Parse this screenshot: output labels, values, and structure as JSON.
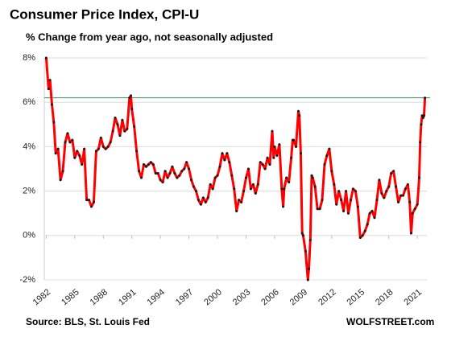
{
  "chart_data": {
    "type": "line",
    "title": "Consumer  Price Index, CPI-U",
    "subtitle": "% Change from year ago, not seasonally adjusted",
    "source": "Source: BLS, St. Louis Fed",
    "brand": "WOLFSTREET.com",
    "x": [
      1982.0,
      1982.25,
      1982.4,
      1982.6,
      1982.8,
      1983.0,
      1983.25,
      1983.5,
      1983.75,
      1984.0,
      1984.25,
      1984.5,
      1984.75,
      1985.0,
      1985.25,
      1985.5,
      1985.75,
      1986.0,
      1986.25,
      1986.5,
      1986.75,
      1987.0,
      1987.25,
      1987.5,
      1987.75,
      1988.0,
      1988.25,
      1988.5,
      1988.75,
      1989.0,
      1989.25,
      1989.5,
      1989.75,
      1990.0,
      1990.25,
      1990.5,
      1990.75,
      1990.9,
      1991.0,
      1991.25,
      1991.5,
      1991.75,
      1992.0,
      1992.25,
      1992.5,
      1992.75,
      1993.0,
      1993.25,
      1993.5,
      1993.75,
      1994.0,
      1994.25,
      1994.5,
      1994.75,
      1995.0,
      1995.25,
      1995.5,
      1995.75,
      1996.0,
      1996.25,
      1996.5,
      1996.75,
      1997.0,
      1997.25,
      1997.5,
      1997.75,
      1998.0,
      1998.25,
      1998.5,
      1998.75,
      1999.0,
      1999.25,
      1999.5,
      1999.75,
      2000.0,
      2000.25,
      2000.5,
      2000.75,
      2001.0,
      2001.25,
      2001.5,
      2001.75,
      2002.0,
      2002.25,
      2002.5,
      2002.75,
      2003.0,
      2003.25,
      2003.5,
      2003.75,
      2004.0,
      2004.25,
      2004.5,
      2004.75,
      2005.0,
      2005.25,
      2005.5,
      2005.75,
      2005.9,
      2006.0,
      2006.25,
      2006.5,
      2006.75,
      2006.9,
      2007.0,
      2007.25,
      2007.5,
      2007.75,
      2007.9,
      2008.0,
      2008.25,
      2008.5,
      2008.6,
      2008.75,
      2008.9,
      2009.0,
      2009.25,
      2009.5,
      2009.6,
      2009.75,
      2009.9,
      2010.0,
      2010.25,
      2010.5,
      2010.75,
      2011.0,
      2011.25,
      2011.5,
      2011.75,
      2012.0,
      2012.25,
      2012.5,
      2012.75,
      2013.0,
      2013.25,
      2013.5,
      2013.75,
      2014.0,
      2014.25,
      2014.5,
      2014.75,
      2015.0,
      2015.25,
      2015.5,
      2015.75,
      2016.0,
      2016.25,
      2016.5,
      2016.75,
      2017.0,
      2017.25,
      2017.5,
      2017.75,
      2018.0,
      2018.25,
      2018.5,
      2018.75,
      2019.0,
      2019.25,
      2019.5,
      2019.75,
      2020.0,
      2020.2,
      2020.35,
      2020.5,
      2020.75,
      2021.0,
      2021.2,
      2021.3,
      2021.4,
      2021.5,
      2021.6,
      2021.7,
      2021.8
    ],
    "values": [
      8.0,
      6.6,
      7.0,
      5.9,
      5.1,
      3.7,
      3.9,
      2.5,
      2.9,
      4.2,
      4.6,
      4.2,
      4.3,
      3.5,
      3.8,
      3.6,
      3.2,
      3.9,
      1.6,
      1.6,
      1.3,
      1.5,
      3.8,
      3.9,
      4.4,
      4.0,
      3.9,
      4.0,
      4.2,
      4.7,
      5.3,
      5.0,
      4.5,
      5.2,
      4.7,
      4.8,
      6.2,
      6.3,
      5.7,
      4.9,
      3.8,
      2.9,
      2.6,
      3.2,
      3.1,
      3.2,
      3.3,
      3.2,
      2.8,
      2.8,
      2.5,
      2.4,
      2.9,
      2.6,
      2.8,
      3.1,
      2.8,
      2.6,
      2.7,
      2.9,
      3.0,
      3.3,
      3.0,
      2.5,
      2.2,
      2.0,
      1.6,
      1.4,
      1.7,
      1.5,
      1.7,
      2.3,
      2.1,
      2.6,
      2.7,
      3.1,
      3.7,
      3.4,
      3.7,
      3.3,
      2.7,
      2.1,
      1.1,
      1.6,
      1.5,
      2.0,
      2.6,
      3.0,
      2.1,
      2.3,
      1.9,
      2.3,
      3.3,
      3.2,
      3.0,
      3.5,
      3.2,
      4.7,
      3.5,
      4.0,
      3.6,
      4.1,
      2.1,
      1.3,
      2.1,
      2.6,
      2.4,
      3.5,
      4.3,
      4.3,
      4.0,
      5.6,
      5.4,
      3.7,
      0.1,
      0.0,
      -0.7,
      -2.0,
      -1.5,
      -0.2,
      2.7,
      2.6,
      2.2,
      1.2,
      1.2,
      1.6,
      3.2,
      3.6,
      3.9,
      2.9,
      2.3,
      1.4,
      2.0,
      1.6,
      1.1,
      2.0,
      1.0,
      1.6,
      2.1,
      2.0,
      1.3,
      -0.1,
      0.0,
      0.2,
      0.5,
      1.0,
      1.1,
      0.8,
      1.6,
      2.5,
      1.9,
      1.7,
      2.0,
      2.2,
      2.8,
      2.9,
      2.2,
      1.5,
      1.8,
      1.8,
      2.1,
      2.3,
      1.5,
      0.1,
      1.0,
      1.2,
      1.4,
      2.6,
      4.2,
      5.0,
      5.4,
      5.3,
      5.4,
      6.2
    ],
    "color": "#ff0000",
    "marker_color": "#1a1a1a",
    "reference_line": 6.2,
    "reference_color": "#2e8b57",
    "xlim": [
      1981.8,
      2022.0
    ],
    "xticks": [
      1982,
      1985,
      1988,
      1991,
      1994,
      1997,
      2000,
      2003,
      2006,
      2009,
      2012,
      2015,
      2018,
      2021
    ],
    "ylim": [
      -2,
      8
    ],
    "yticks": [
      {
        "value": -2,
        "label": "-2%"
      },
      {
        "value": 0,
        "label": "0%"
      },
      {
        "value": 2,
        "label": "2%"
      },
      {
        "value": 4,
        "label": "4%"
      },
      {
        "value": 6,
        "label": "6%"
      },
      {
        "value": 8,
        "label": "8%"
      }
    ],
    "grid": true
  }
}
